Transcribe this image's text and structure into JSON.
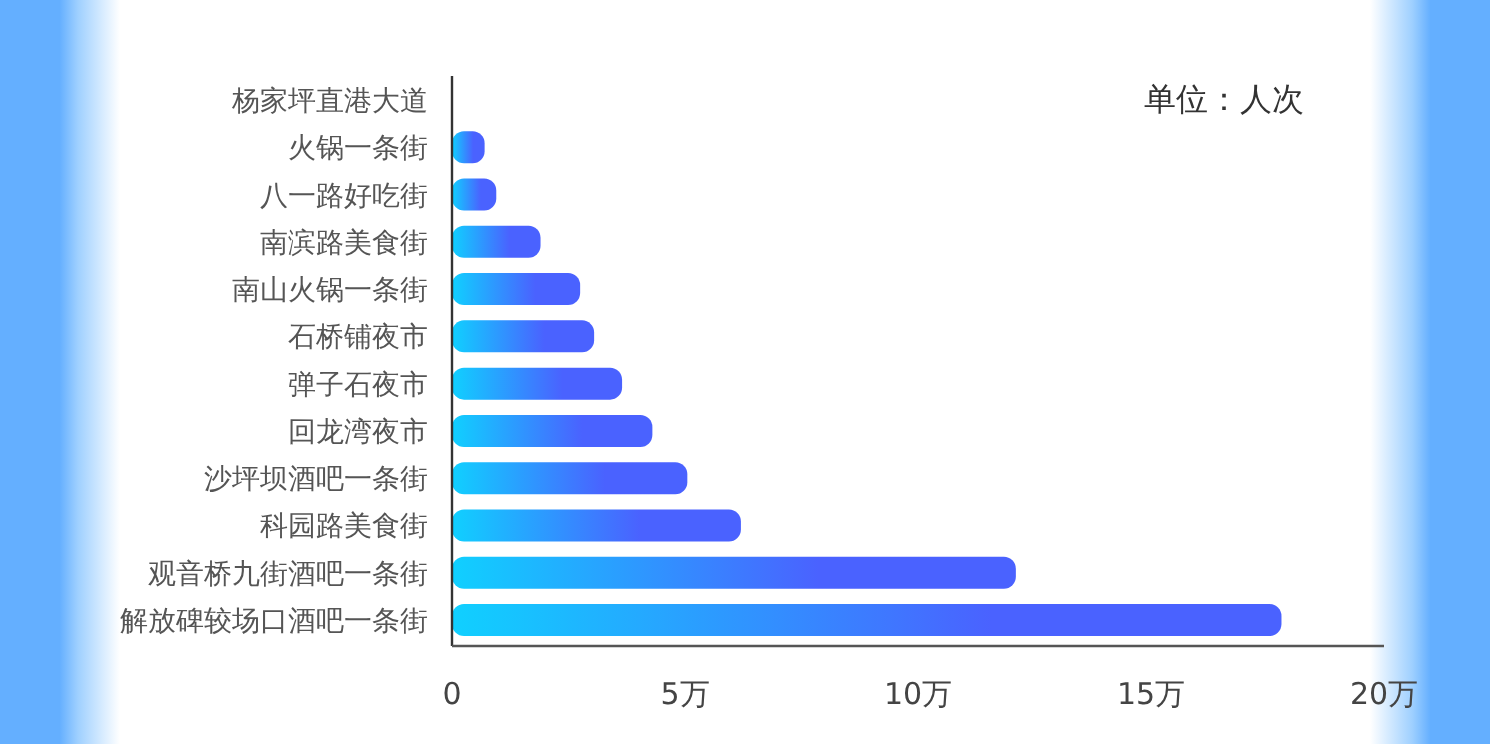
{
  "chart_data": {
    "type": "bar",
    "orientation": "horizontal",
    "categories": [
      "杨家坪直港大道",
      "火锅一条街",
      "八一路好吃街",
      "南滨路美食街",
      "南山火锅一条街",
      "石桥铺夜市",
      "弹子石夜市",
      "回龙湾夜市",
      "沙坪坝酒吧一条街",
      "科园路美食街",
      "观音桥九街酒吧一条街",
      "解放碑较场口酒吧一条街"
    ],
    "values": [
      null,
      0.7,
      0.95,
      1.9,
      2.75,
      3.05,
      3.65,
      4.3,
      5.05,
      6.2,
      12.1,
      17.8
    ],
    "color": "#4a62ff",
    "xlim": [
      0,
      20
    ],
    "xticks": [
      0,
      {
        "value": 5,
        "label": "5万"
      },
      {
        "value": 10,
        "label": "10万"
      },
      {
        "value": 15,
        "label": "15万"
      },
      {
        "value": 20,
        "label": "20万"
      }
    ],
    "annotations": [
      "单位：人次"
    ],
    "grid": false
  }
}
